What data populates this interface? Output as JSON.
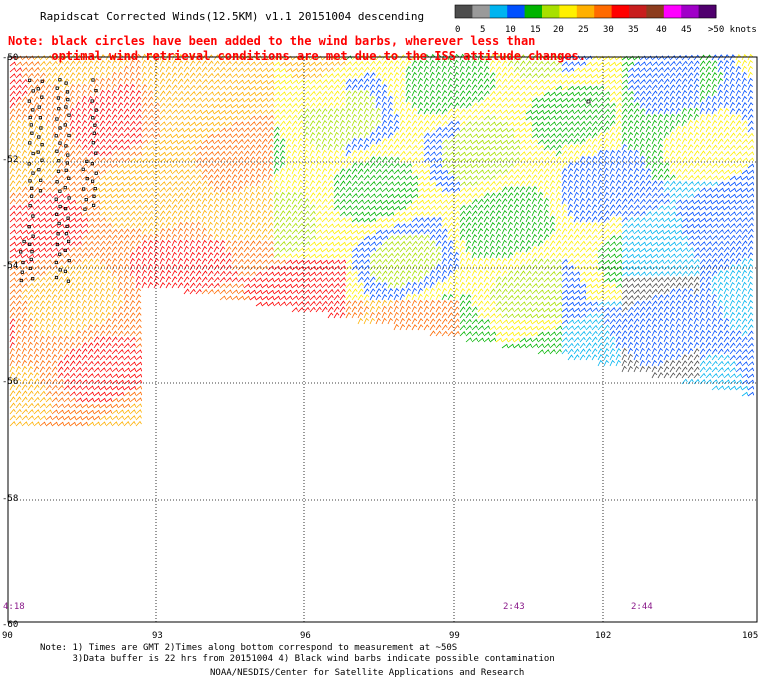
{
  "title": "Rapidscat Corrected Winds(12.5KM) v1.1 20151004 descending",
  "note_lines": [
    "Note: black circles have been added to the wind barbs, wherever less than",
    "      optimal wind retrieval conditions are met due to the ISS attitude changes."
  ],
  "colorbar": {
    "unit": "knots",
    "labels": [
      "0",
      "5",
      "10",
      "15",
      "20",
      "25",
      "30",
      "35",
      "40",
      "45",
      ">50 knots"
    ],
    "colors": [
      "#4d4d4d",
      "#9a9a9a",
      "#00b4f0",
      "#0050ff",
      "#00b400",
      "#a8e000",
      "#fff000",
      "#ffb000",
      "#ff6a00",
      "#ff0000",
      "#c81e1e",
      "#8c3c1e",
      "#ff00ff",
      "#a000c8",
      "#50006e"
    ]
  },
  "map": {
    "x_ticks": [
      "90",
      "93",
      "96",
      "99",
      "102",
      "105"
    ],
    "y_ticks": [
      "-50",
      "-52",
      "-54",
      "-56",
      "-58",
      "-60"
    ],
    "y_tick_values": [
      -50,
      -52,
      -54,
      -56,
      -58,
      -60
    ],
    "lon_range": [
      90,
      105
    ],
    "lat_range": [
      -60,
      -50
    ],
    "times": [
      "4:18",
      "2:43",
      "2:44"
    ]
  },
  "footer_notes": [
    "Note: 1) Times are GMT 2)Times along bottom correspond to measurement at ~50S",
    "      3)Data buffer is 22 hrs from 20151004 4) Black wind barbs indicate possible contamination"
  ],
  "credit": "NOAA/NESDIS/Center for Satellite Applications and Research",
  "colors": {
    "note_red": "#ff0000",
    "time_purple": "#8a1a8a",
    "grid": "#000000"
  }
}
